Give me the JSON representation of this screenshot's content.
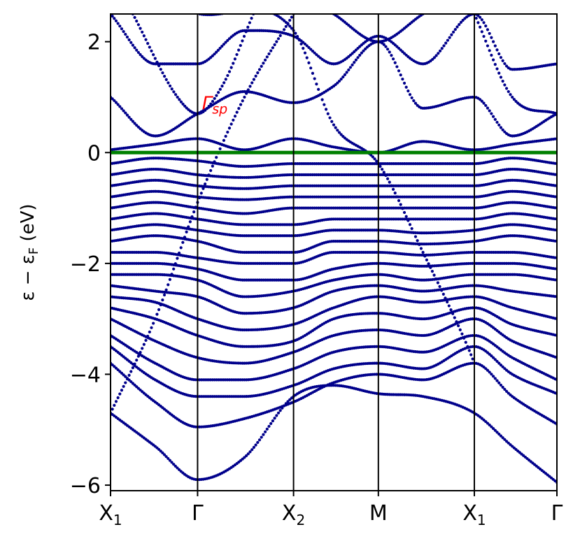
{
  "chart_data": {
    "type": "scatter",
    "title": "",
    "xlabel": "",
    "ylabel": "ε − ε",
    "ylabel_sub": "F",
    "ylabel_unit": " (eV)",
    "ylim": [
      -6.1,
      2.5
    ],
    "y_ticks": [
      {
        "value": 2,
        "label": "2"
      },
      {
        "value": 0,
        "label": "0"
      },
      {
        "value": -2,
        "label": "−2"
      },
      {
        "value": -4,
        "label": "−4"
      },
      {
        "value": -6,
        "label": "−6"
      }
    ],
    "kpath_positions": [
      0,
      0.195,
      0.41,
      0.6,
      0.815,
      1.0
    ],
    "kpath_labels": [
      {
        "main": "X",
        "sub": "1"
      },
      {
        "main": "Γ",
        "sub": ""
      },
      {
        "main": "X",
        "sub": "2"
      },
      {
        "main": "M",
        "sub": ""
      },
      {
        "main": "X",
        "sub": "1"
      },
      {
        "main": "Γ",
        "sub": ""
      }
    ],
    "fermi_level": 0,
    "grid": false,
    "annotation": {
      "text": "Γ",
      "sub": "sp",
      "k": 0.205,
      "energy": 0.78
    },
    "colors": {
      "bands": "#00008b",
      "fermi": "#008000",
      "annotation": "#ff0000",
      "axes": "#000000"
    },
    "series": [
      {
        "points": [
          [
            0,
            -4.7
          ],
          [
            0.1,
            -5.3
          ],
          [
            0.195,
            -5.9
          ],
          [
            0.3,
            -5.5
          ],
          [
            0.41,
            -4.4
          ],
          [
            0.5,
            -4.2
          ],
          [
            0.6,
            -4.35
          ],
          [
            0.7,
            -4.4
          ],
          [
            0.815,
            -4.7
          ],
          [
            0.9,
            -5.3
          ],
          [
            1.0,
            -5.95
          ]
        ]
      },
      {
        "points": [
          [
            0,
            -3.8
          ],
          [
            0.1,
            -4.5
          ],
          [
            0.195,
            -4.95
          ],
          [
            0.3,
            -4.8
          ],
          [
            0.41,
            -4.5
          ],
          [
            0.5,
            -4.15
          ],
          [
            0.6,
            -4.0
          ],
          [
            0.7,
            -4.1
          ],
          [
            0.815,
            -3.8
          ],
          [
            0.9,
            -4.4
          ],
          [
            1.0,
            -4.9
          ]
        ]
      },
      {
        "points": [
          [
            0,
            -3.5
          ],
          [
            0.1,
            -4.1
          ],
          [
            0.195,
            -4.4
          ],
          [
            0.3,
            -4.4
          ],
          [
            0.41,
            -4.2
          ],
          [
            0.5,
            -3.9
          ],
          [
            0.6,
            -3.8
          ],
          [
            0.7,
            -3.9
          ],
          [
            0.815,
            -3.5
          ],
          [
            0.9,
            -4.0
          ],
          [
            1.0,
            -4.35
          ]
        ]
      },
      {
        "points": [
          [
            0,
            -3.3
          ],
          [
            0.1,
            -3.8
          ],
          [
            0.195,
            -4.1
          ],
          [
            0.3,
            -4.1
          ],
          [
            0.41,
            -3.9
          ],
          [
            0.5,
            -3.6
          ],
          [
            0.6,
            -3.5
          ],
          [
            0.7,
            -3.6
          ],
          [
            0.815,
            -3.3
          ],
          [
            0.9,
            -3.7
          ],
          [
            1.0,
            -4.1
          ]
        ]
      },
      {
        "points": [
          [
            0,
            -3.0
          ],
          [
            0.1,
            -3.4
          ],
          [
            0.195,
            -3.7
          ],
          [
            0.3,
            -3.8
          ],
          [
            0.41,
            -3.6
          ],
          [
            0.5,
            -3.3
          ],
          [
            0.6,
            -3.2
          ],
          [
            0.7,
            -3.3
          ],
          [
            0.815,
            -3.0
          ],
          [
            0.9,
            -3.4
          ],
          [
            1.0,
            -3.7
          ]
        ]
      },
      {
        "points": [
          [
            0,
            -2.8
          ],
          [
            0.1,
            -3.0
          ],
          [
            0.195,
            -3.3
          ],
          [
            0.3,
            -3.5
          ],
          [
            0.41,
            -3.4
          ],
          [
            0.5,
            -3.0
          ],
          [
            0.6,
            -2.9
          ],
          [
            0.7,
            -3.0
          ],
          [
            0.815,
            -2.8
          ],
          [
            0.9,
            -3.1
          ],
          [
            1.0,
            -3.3
          ]
        ]
      },
      {
        "points": [
          [
            0,
            -2.6
          ],
          [
            0.1,
            -2.7
          ],
          [
            0.195,
            -3.0
          ],
          [
            0.3,
            -3.2
          ],
          [
            0.41,
            -3.1
          ],
          [
            0.5,
            -2.8
          ],
          [
            0.6,
            -2.6
          ],
          [
            0.7,
            -2.7
          ],
          [
            0.815,
            -2.6
          ],
          [
            0.9,
            -2.8
          ],
          [
            1.0,
            -3.0
          ]
        ]
      },
      {
        "points": [
          [
            0,
            -2.4
          ],
          [
            0.1,
            -2.5
          ],
          [
            0.195,
            -2.6
          ],
          [
            0.3,
            -2.9
          ],
          [
            0.41,
            -2.8
          ],
          [
            0.5,
            -2.5
          ],
          [
            0.6,
            -2.4
          ],
          [
            0.7,
            -2.5
          ],
          [
            0.815,
            -2.4
          ],
          [
            0.9,
            -2.5
          ],
          [
            1.0,
            -2.6
          ]
        ]
      },
      {
        "points": [
          [
            0,
            -2.2
          ],
          [
            0.1,
            -2.2
          ],
          [
            0.195,
            -2.3
          ],
          [
            0.3,
            -2.6
          ],
          [
            0.41,
            -2.5
          ],
          [
            0.5,
            -2.3
          ],
          [
            0.6,
            -2.2
          ],
          [
            0.7,
            -2.3
          ],
          [
            0.815,
            -2.2
          ],
          [
            0.9,
            -2.2
          ],
          [
            1.0,
            -2.3
          ]
        ]
      },
      {
        "points": [
          [
            0,
            -2.0
          ],
          [
            0.1,
            -2.0
          ],
          [
            0.195,
            -2.1
          ],
          [
            0.3,
            -2.3
          ],
          [
            0.41,
            -2.3
          ],
          [
            0.5,
            -2.1
          ],
          [
            0.6,
            -2.0
          ],
          [
            0.7,
            -2.05
          ],
          [
            0.815,
            -2.0
          ],
          [
            0.9,
            -2.0
          ],
          [
            1.0,
            -2.1
          ]
        ]
      },
      {
        "points": [
          [
            0,
            -1.8
          ],
          [
            0.1,
            -1.8
          ],
          [
            0.195,
            -1.9
          ],
          [
            0.3,
            -2.0
          ],
          [
            0.41,
            -2.0
          ],
          [
            0.5,
            -1.8
          ],
          [
            0.6,
            -1.8
          ],
          [
            0.7,
            -1.85
          ],
          [
            0.815,
            -1.8
          ],
          [
            0.9,
            -1.8
          ],
          [
            1.0,
            -1.9
          ]
        ]
      },
      {
        "points": [
          [
            0,
            -1.6
          ],
          [
            0.1,
            -1.5
          ],
          [
            0.195,
            -1.6
          ],
          [
            0.3,
            -1.8
          ],
          [
            0.41,
            -1.8
          ],
          [
            0.5,
            -1.6
          ],
          [
            0.6,
            -1.6
          ],
          [
            0.7,
            -1.65
          ],
          [
            0.815,
            -1.6
          ],
          [
            0.9,
            -1.5
          ],
          [
            1.0,
            -1.6
          ]
        ]
      },
      {
        "points": [
          [
            0,
            -1.4
          ],
          [
            0.1,
            -1.3
          ],
          [
            0.195,
            -1.4
          ],
          [
            0.3,
            -1.5
          ],
          [
            0.41,
            -1.5
          ],
          [
            0.5,
            -1.4
          ],
          [
            0.6,
            -1.4
          ],
          [
            0.7,
            -1.45
          ],
          [
            0.815,
            -1.4
          ],
          [
            0.9,
            -1.3
          ],
          [
            1.0,
            -1.4
          ]
        ]
      },
      {
        "points": [
          [
            0,
            -1.2
          ],
          [
            0.1,
            -1.1
          ],
          [
            0.195,
            -1.2
          ],
          [
            0.3,
            -1.3
          ],
          [
            0.41,
            -1.3
          ],
          [
            0.5,
            -1.2
          ],
          [
            0.6,
            -1.2
          ],
          [
            0.7,
            -1.2
          ],
          [
            0.815,
            -1.2
          ],
          [
            0.9,
            -1.1
          ],
          [
            1.0,
            -1.2
          ]
        ]
      },
      {
        "points": [
          [
            0,
            -1.0
          ],
          [
            0.1,
            -0.9
          ],
          [
            0.195,
            -1.0
          ],
          [
            0.3,
            -1.1
          ],
          [
            0.41,
            -1.0
          ],
          [
            0.5,
            -1.0
          ],
          [
            0.6,
            -1.0
          ],
          [
            0.7,
            -1.0
          ],
          [
            0.815,
            -1.0
          ],
          [
            0.9,
            -0.9
          ],
          [
            1.0,
            -1.0
          ]
        ]
      },
      {
        "points": [
          [
            0,
            -0.8
          ],
          [
            0.1,
            -0.7
          ],
          [
            0.195,
            -0.8
          ],
          [
            0.3,
            -0.85
          ],
          [
            0.41,
            -0.8
          ],
          [
            0.5,
            -0.8
          ],
          [
            0.6,
            -0.8
          ],
          [
            0.7,
            -0.8
          ],
          [
            0.815,
            -0.8
          ],
          [
            0.9,
            -0.7
          ],
          [
            1.0,
            -0.8
          ]
        ]
      },
      {
        "points": [
          [
            0,
            -0.6
          ],
          [
            0.1,
            -0.5
          ],
          [
            0.195,
            -0.6
          ],
          [
            0.3,
            -0.65
          ],
          [
            0.41,
            -0.6
          ],
          [
            0.5,
            -0.6
          ],
          [
            0.6,
            -0.6
          ],
          [
            0.7,
            -0.6
          ],
          [
            0.815,
            -0.6
          ],
          [
            0.9,
            -0.5
          ],
          [
            1.0,
            -0.6
          ]
        ]
      },
      {
        "points": [
          [
            0,
            -0.4
          ],
          [
            0.1,
            -0.3
          ],
          [
            0.195,
            -0.4
          ],
          [
            0.3,
            -0.45
          ],
          [
            0.41,
            -0.4
          ],
          [
            0.5,
            -0.4
          ],
          [
            0.6,
            -0.4
          ],
          [
            0.7,
            -0.4
          ],
          [
            0.815,
            -0.4
          ],
          [
            0.9,
            -0.3
          ],
          [
            1.0,
            -0.4
          ]
        ]
      },
      {
        "points": [
          [
            0,
            -0.2
          ],
          [
            0.1,
            -0.1
          ],
          [
            0.195,
            -0.15
          ],
          [
            0.3,
            -0.25
          ],
          [
            0.41,
            -0.2
          ],
          [
            0.5,
            -0.2
          ],
          [
            0.6,
            -0.2
          ],
          [
            0.7,
            -0.2
          ],
          [
            0.815,
            -0.2
          ],
          [
            0.9,
            -0.1
          ],
          [
            1.0,
            -0.2
          ]
        ]
      },
      {
        "points": [
          [
            0,
            0.05
          ],
          [
            0.1,
            0.15
          ],
          [
            0.195,
            0.25
          ],
          [
            0.3,
            0.05
          ],
          [
            0.41,
            0.25
          ],
          [
            0.5,
            0.1
          ],
          [
            0.6,
            0.0
          ],
          [
            0.7,
            0.2
          ],
          [
            0.815,
            0.05
          ],
          [
            0.9,
            0.15
          ],
          [
            1.0,
            0.25
          ]
        ]
      },
      {
        "points": [
          [
            0,
            1.0
          ],
          [
            0.1,
            0.3
          ],
          [
            0.195,
            0.7
          ],
          [
            0.3,
            1.1
          ],
          [
            0.41,
            0.9
          ],
          [
            0.5,
            1.2
          ],
          [
            0.6,
            2.0
          ],
          [
            0.7,
            0.8
          ],
          [
            0.815,
            1.0
          ],
          [
            0.9,
            0.3
          ],
          [
            1.0,
            0.7
          ]
        ]
      },
      {
        "points": [
          [
            0,
            2.5
          ],
          [
            0.1,
            1.6
          ],
          [
            0.195,
            1.6
          ],
          [
            0.3,
            2.2
          ],
          [
            0.41,
            2.1
          ],
          [
            0.5,
            1.6
          ],
          [
            0.6,
            2.1
          ],
          [
            0.7,
            1.6
          ],
          [
            0.815,
            2.5
          ],
          [
            0.9,
            1.5
          ],
          [
            1.0,
            1.6
          ]
        ]
      },
      {
        "points": [
          [
            0.05,
            2.5
          ],
          [
            0.15,
            1.0
          ],
          [
            0.195,
            0.7
          ],
          [
            0.25,
            1.2
          ],
          [
            0.32,
            2.5
          ]
        ]
      },
      {
        "points": [
          [
            0.2,
            2.5
          ],
          [
            0.41,
            2.2
          ],
          [
            0.5,
            0.5
          ],
          [
            0.6,
            -0.2
          ],
          [
            0.7,
            -1.8
          ],
          [
            0.8,
            -3.5
          ],
          [
            0.815,
            -3.8
          ]
        ]
      },
      {
        "points": [
          [
            0.5,
            2.5
          ],
          [
            0.6,
            2.0
          ],
          [
            0.7,
            2.5
          ]
        ]
      },
      {
        "points": [
          [
            0.815,
            2.5
          ],
          [
            0.9,
            1.0
          ],
          [
            1.0,
            0.7
          ]
        ]
      },
      {
        "points": [
          [
            0,
            -4.7
          ],
          [
            0.1,
            -3.0
          ],
          [
            0.195,
            -0.9
          ],
          [
            0.3,
            1.0
          ],
          [
            0.41,
            2.5
          ]
        ]
      }
    ]
  }
}
